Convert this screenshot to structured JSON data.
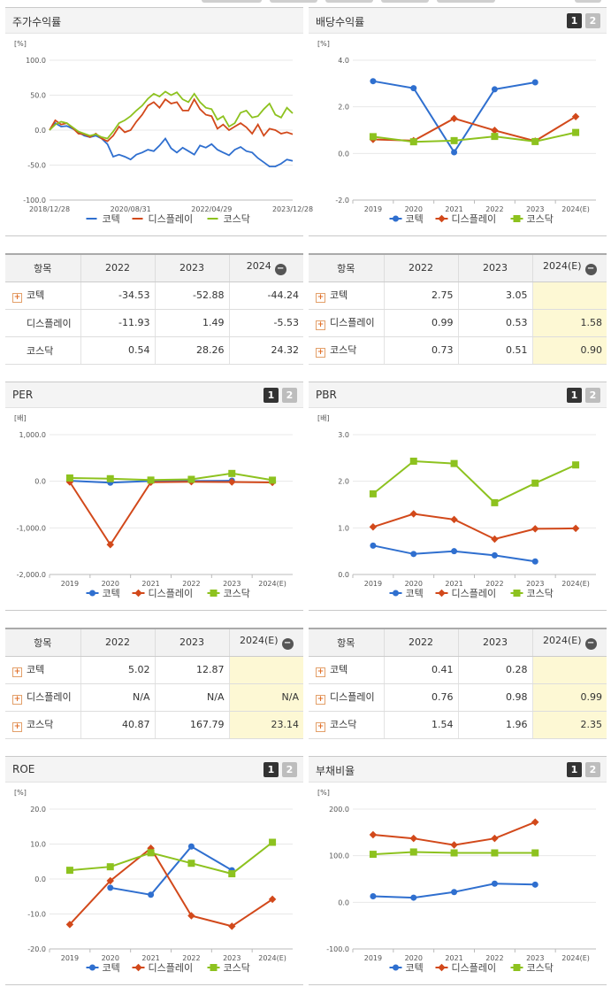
{
  "panels": {
    "stock": {
      "title": "주가수익률",
      "unit": "[%]"
    },
    "dividend": {
      "title": "배당수익률",
      "unit": "[%]",
      "btn1": "1",
      "btn2": "2"
    },
    "per": {
      "title": "PER",
      "unit": "[배]",
      "btn1": "1",
      "btn2": "2"
    },
    "pbr": {
      "title": "PBR",
      "unit": "[배]",
      "btn1": "1",
      "btn2": "2"
    },
    "roe": {
      "title": "ROE",
      "unit": "[%]",
      "btn1": "1",
      "btn2": "2"
    },
    "debt": {
      "title": "부채비율",
      "unit": "[%]",
      "btn1": "1",
      "btn2": "2"
    }
  },
  "tables": {
    "stock": {
      "headers": [
        "항목",
        "2022",
        "2023",
        "2024"
      ],
      "rows": [
        {
          "name": "코텍",
          "plus": true,
          "values": [
            "-34.53",
            "-52.88",
            "-44.24"
          ]
        },
        {
          "name": "디스플레이",
          "plus": false,
          "values": [
            "-11.93",
            "1.49",
            "-5.53"
          ]
        },
        {
          "name": "코스닥",
          "plus": false,
          "values": [
            "0.54",
            "28.26",
            "24.32"
          ]
        }
      ]
    },
    "dividend": {
      "headers": [
        "항목",
        "2022",
        "2023",
        "2024(E)"
      ],
      "rows": [
        {
          "name": "코텍",
          "plus": true,
          "values": [
            "2.75",
            "3.05",
            ""
          ]
        },
        {
          "name": "디스플레이",
          "plus": true,
          "values": [
            "0.99",
            "0.53",
            "1.58"
          ]
        },
        {
          "name": "코스닥",
          "plus": true,
          "values": [
            "0.73",
            "0.51",
            "0.90"
          ]
        }
      ]
    },
    "per": {
      "headers": [
        "항목",
        "2022",
        "2023",
        "2024(E)"
      ],
      "rows": [
        {
          "name": "코텍",
          "plus": true,
          "values": [
            "5.02",
            "12.87",
            ""
          ]
        },
        {
          "name": "디스플레이",
          "plus": true,
          "values": [
            "N/A",
            "N/A",
            "N/A"
          ]
        },
        {
          "name": "코스닥",
          "plus": true,
          "values": [
            "40.87",
            "167.79",
            "23.14"
          ]
        }
      ]
    },
    "pbr": {
      "headers": [
        "항목",
        "2022",
        "2023",
        "2024(E)"
      ],
      "rows": [
        {
          "name": "코텍",
          "plus": true,
          "values": [
            "0.41",
            "0.28",
            ""
          ]
        },
        {
          "name": "디스플레이",
          "plus": true,
          "values": [
            "0.76",
            "0.98",
            "0.99"
          ]
        },
        {
          "name": "코스닥",
          "plus": true,
          "values": [
            "1.54",
            "1.96",
            "2.35"
          ]
        }
      ]
    }
  },
  "chart_data": [
    {
      "id": "stock",
      "type": "line",
      "x_ticks": [
        "2018/12/28",
        "2020/08/31",
        "2022/04/29",
        "2023/12/28"
      ],
      "ylim": [
        -100,
        100
      ],
      "y_ticks": [
        "100.0",
        "50.0",
        "0.0",
        "-50.0",
        "-100.0"
      ],
      "colors": [
        "#2f6fcf",
        "#d2491b",
        "#8dc21f"
      ],
      "series": [
        {
          "name": "코텍",
          "values": [
            0,
            10,
            5,
            6,
            2,
            -3,
            -8,
            -10,
            -8,
            -12,
            -20,
            -38,
            -35,
            -38,
            -42,
            -35,
            -32,
            -28,
            -30,
            -22,
            -12,
            -26,
            -32,
            -25,
            -30,
            -35,
            -22,
            -25,
            -20,
            -28,
            -32,
            -36,
            -28,
            -24,
            -30,
            -32,
            -40,
            -46,
            -52,
            -52,
            -48,
            -42,
            -44
          ]
        },
        {
          "name": "디스플레이",
          "values": [
            0,
            14,
            8,
            10,
            3,
            -5,
            -6,
            -10,
            -5,
            -12,
            -16,
            -8,
            5,
            -3,
            0,
            12,
            22,
            35,
            40,
            32,
            44,
            38,
            40,
            28,
            28,
            44,
            30,
            22,
            20,
            2,
            8,
            0,
            5,
            10,
            4,
            -5,
            8,
            -8,
            2,
            0,
            -5,
            -3,
            -6
          ]
        },
        {
          "name": "코스닥",
          "values": [
            0,
            8,
            12,
            10,
            4,
            -2,
            -5,
            -8,
            -6,
            -10,
            -12,
            -2,
            10,
            14,
            20,
            28,
            35,
            45,
            52,
            48,
            55,
            50,
            54,
            44,
            40,
            52,
            40,
            32,
            30,
            15,
            20,
            5,
            10,
            25,
            28,
            18,
            20,
            30,
            38,
            22,
            18,
            32,
            24
          ]
        }
      ]
    },
    {
      "id": "dividend",
      "type": "line",
      "categories": [
        "2019",
        "2020",
        "2021",
        "2022",
        "2023",
        "2024(E)"
      ],
      "ylim": [
        -2,
        4
      ],
      "y_ticks": [
        "4.0",
        "2.0",
        "0.0",
        "-2.0"
      ],
      "colors": [
        "#2f6fcf",
        "#d2491b",
        "#8dc21f"
      ],
      "series": [
        {
          "name": "코텍",
          "values": [
            3.1,
            2.8,
            0.05,
            2.75,
            3.05,
            null
          ]
        },
        {
          "name": "디스플레이",
          "values": [
            0.6,
            0.55,
            1.5,
            0.99,
            0.53,
            1.58
          ]
        },
        {
          "name": "코스닥",
          "values": [
            0.72,
            0.5,
            0.55,
            0.73,
            0.51,
            0.9
          ]
        }
      ]
    },
    {
      "id": "per",
      "type": "line",
      "categories": [
        "2019",
        "2020",
        "2021",
        "2022",
        "2023",
        "2024(E)"
      ],
      "ylim": [
        -2000,
        1000
      ],
      "y_ticks": [
        "1,000.0",
        "0.0",
        "-1,000.0",
        "-2,000.0"
      ],
      "colors": [
        "#2f6fcf",
        "#d2491b",
        "#8dc21f"
      ],
      "series": [
        {
          "name": "코텍",
          "values": [
            10,
            -30,
            5,
            5.02,
            12.87,
            null
          ]
        },
        {
          "name": "디스플레이",
          "values": [
            -15,
            -1360,
            -20,
            -10,
            -15,
            -25
          ]
        },
        {
          "name": "코스닥",
          "values": [
            70,
            55,
            25,
            40.87,
            167.79,
            23.14
          ]
        }
      ]
    },
    {
      "id": "pbr",
      "type": "line",
      "categories": [
        "2019",
        "2020",
        "2021",
        "2022",
        "2023",
        "2024(E)"
      ],
      "ylim": [
        0,
        3
      ],
      "y_ticks": [
        "3.0",
        "2.0",
        "1.0",
        "0.0"
      ],
      "colors": [
        "#2f6fcf",
        "#d2491b",
        "#8dc21f"
      ],
      "series": [
        {
          "name": "코텍",
          "values": [
            0.62,
            0.44,
            0.5,
            0.41,
            0.28,
            null
          ]
        },
        {
          "name": "디스플레이",
          "values": [
            1.02,
            1.3,
            1.18,
            0.76,
            0.98,
            0.99
          ]
        },
        {
          "name": "코스닥",
          "values": [
            1.73,
            2.43,
            2.38,
            1.54,
            1.96,
            2.35
          ]
        }
      ]
    },
    {
      "id": "roe",
      "type": "line",
      "categories": [
        "2019",
        "2020",
        "2021",
        "2022",
        "2023",
        "2024(E)"
      ],
      "ylim": [
        -20,
        20
      ],
      "y_ticks": [
        "20.0",
        "10.0",
        "0.0",
        "-10.0",
        "-20.0"
      ],
      "colors": [
        "#2f6fcf",
        "#d2491b",
        "#8dc21f"
      ],
      "series": [
        {
          "name": "코텍",
          "values": [
            null,
            -2.5,
            -4.5,
            9.3,
            2.5,
            null
          ]
        },
        {
          "name": "디스플레이",
          "values": [
            -13,
            -0.5,
            8.8,
            -10.5,
            -13.5,
            -5.8
          ]
        },
        {
          "name": "코스닥",
          "values": [
            2.5,
            3.5,
            7.5,
            4.5,
            1.5,
            10.5
          ]
        }
      ]
    },
    {
      "id": "debt",
      "type": "line",
      "categories": [
        "2019",
        "2020",
        "2021",
        "2022",
        "2023",
        "2024(E)"
      ],
      "ylim": [
        -100,
        200
      ],
      "y_ticks": [
        "200.0",
        "100.0",
        "0.0",
        "-100.0"
      ],
      "colors": [
        "#2f6fcf",
        "#d2491b",
        "#8dc21f"
      ],
      "series": [
        {
          "name": "코텍",
          "values": [
            13,
            10,
            22,
            40,
            38,
            null
          ]
        },
        {
          "name": "디스플레이",
          "values": [
            145,
            137,
            123,
            137,
            172,
            null
          ]
        },
        {
          "name": "코스닥",
          "values": [
            103,
            108,
            106,
            106,
            106,
            null
          ]
        }
      ]
    }
  ]
}
